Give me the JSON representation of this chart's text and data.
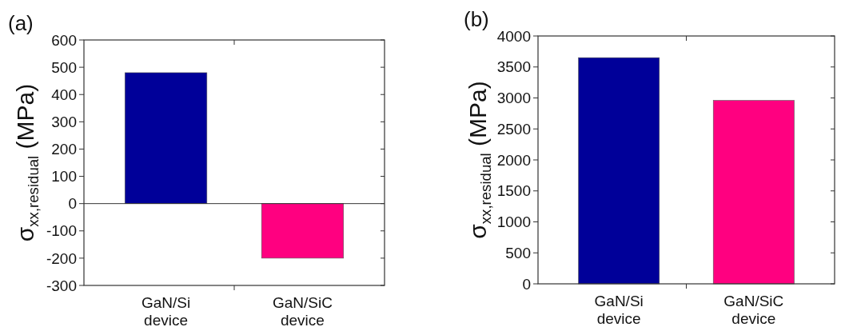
{
  "chart_data": [
    {
      "type": "bar",
      "title": "(a)",
      "ylabel": "σ$_{xx,residual}$ (MPa)",
      "categories": [
        "GaN/Si device",
        "GaN/SiC device"
      ],
      "values": [
        480,
        -200
      ],
      "colors": [
        "#000099",
        "#ff0080"
      ],
      "ylim": [
        -300,
        600
      ],
      "yticks": [
        -300,
        -200,
        -100,
        0,
        100,
        200,
        300,
        400,
        500,
        600
      ],
      "ref_lines": [
        {
          "axis": "y",
          "value": 0
        }
      ]
    },
    {
      "type": "bar",
      "title": "(b)",
      "ylabel": "σ$_{xx,residual}$ (MPa)",
      "categories": [
        "GaN/Si device",
        "GaN/SiC device"
      ],
      "values": [
        3650,
        2960
      ],
      "colors": [
        "#000099",
        "#ff0080"
      ],
      "ylim": [
        0,
        4000
      ],
      "yticks": [
        0,
        500,
        1000,
        1500,
        2000,
        2500,
        3000,
        3500,
        4000
      ]
    }
  ]
}
